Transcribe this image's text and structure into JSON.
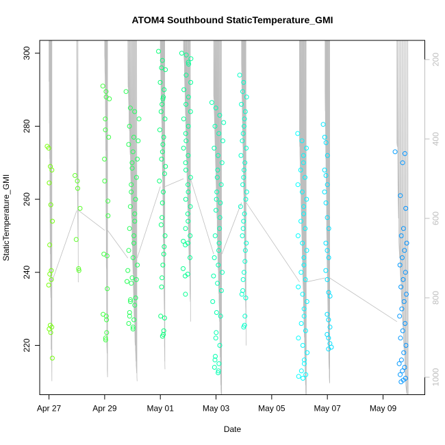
{
  "chart_data": {
    "type": "scatter",
    "title": "ATOM4 Southbound StaticTemperature_GMI",
    "xlabel": "Date",
    "ylabel": "StaticTemperature_GMI",
    "xlim": [
      "2017-04-26T16:00",
      "2017-05-10T12:00"
    ],
    "ylim": [
      206.5,
      303.5
    ],
    "x_ticks": [
      {
        "value": "2017-04-27",
        "label": "Apr 27"
      },
      {
        "value": "2017-04-29",
        "label": "Apr 29"
      },
      {
        "value": "2017-05-01",
        "label": "May 01"
      },
      {
        "value": "2017-05-03",
        "label": "May 03"
      },
      {
        "value": "2017-05-05",
        "label": "May 05"
      },
      {
        "value": "2017-05-07",
        "label": "May 07"
      },
      {
        "value": "2017-05-09",
        "label": "May 09"
      }
    ],
    "y_ticks": [
      220,
      240,
      260,
      280,
      300
    ],
    "y2_axis": {
      "quantity": "pressure",
      "reversed": true,
      "ticks": [
        200,
        400,
        600,
        800,
        1000
      ],
      "color": "#bebebe"
    },
    "grid": false,
    "legend": "none",
    "marker": "open-circle",
    "color_gradient": [
      "#7fff00",
      "#00ff7f",
      "#00ffff",
      "#007fff"
    ],
    "profile_line_color": "#bebebe",
    "flights": [
      {
        "start": "2017-04-27T00:00",
        "end": "2017-04-27T02:30",
        "y": [
          274.5,
          274,
          269,
          268,
          264.5,
          258.5,
          254,
          247.5,
          240.5,
          239.5,
          238,
          236.5,
          225.5,
          225,
          224.5,
          223.5,
          216.5
        ],
        "p": [
          255,
          255,
          360,
          360,
          450,
          540,
          600,
          690,
          760,
          780,
          800,
          820,
          930,
          930,
          940,
          950,
          1010
        ]
      },
      {
        "start": "2017-04-28T00:00",
        "end": "2017-04-28T01:30",
        "y": [
          266.5,
          265,
          263,
          257.5,
          249,
          241,
          240.5
        ],
        "p": [
          490,
          500,
          520,
          580,
          660,
          760,
          760
        ]
      },
      {
        "start": "2017-04-29T00:00",
        "end": "2017-04-29T02:30",
        "y": [
          291,
          289.5,
          288,
          287.5,
          282,
          279,
          277,
          271,
          265,
          259.5,
          255.5,
          245,
          244.5,
          235.5,
          228.5,
          228,
          227,
          223.5,
          222,
          221.5
        ],
        "p": [
          190,
          200,
          230,
          240,
          280,
          320,
          350,
          430,
          510,
          580,
          630,
          720,
          730,
          850,
          920,
          930,
          940,
          980,
          990,
          1000
        ]
      },
      {
        "start": "2017-04-29T20:00",
        "end": "2017-04-30T04:00",
        "y": [
          289.5,
          285,
          284,
          282,
          280,
          277,
          276,
          275,
          273,
          271,
          270,
          268.5,
          266,
          264,
          262,
          260,
          258,
          256,
          254,
          252,
          250,
          248,
          246,
          244,
          242,
          240.5,
          238.5,
          238,
          237.5,
          237,
          233,
          232.5,
          232,
          231,
          229,
          228,
          227,
          226,
          225,
          224.5
        ],
        "p": [
          190,
          270,
          280,
          300,
          320,
          360,
          370,
          380,
          400,
          430,
          440,
          450,
          490,
          510,
          540,
          570,
          600,
          620,
          650,
          670,
          700,
          720,
          740,
          770,
          790,
          820,
          840,
          850,
          860,
          870,
          910,
          920,
          930,
          940,
          960,
          970,
          980,
          990,
          1000,
          1010
        ]
      },
      {
        "start": "2017-05-01T00:00",
        "end": "2017-05-01T04:00",
        "y": [
          300.5,
          298,
          296,
          295.5,
          292,
          290,
          288,
          287.5,
          286,
          284,
          282,
          279,
          277,
          275,
          273,
          271,
          269,
          267,
          265,
          262,
          259,
          255,
          253,
          250,
          247,
          245,
          242,
          238.5,
          236,
          228,
          227.5,
          224,
          223,
          222.5
        ],
        "p": [
          170,
          200,
          220,
          230,
          260,
          280,
          300,
          310,
          320,
          340,
          360,
          400,
          420,
          440,
          460,
          480,
          500,
          520,
          540,
          570,
          600,
          640,
          660,
          690,
          720,
          740,
          770,
          800,
          830,
          920,
          930,
          960,
          970,
          980
        ]
      },
      {
        "start": "2017-05-01T20:00",
        "end": "2017-05-02T02:00",
        "y": [
          300,
          299.5,
          298.5,
          297.5,
          297,
          294,
          292,
          290,
          288,
          286,
          284,
          282,
          280,
          278,
          276,
          274,
          272,
          270,
          268,
          266,
          264,
          262,
          260,
          258,
          256,
          254,
          252,
          250,
          248.5,
          248,
          247.5,
          244,
          241,
          239.5,
          239,
          234
        ],
        "p": [
          180,
          185,
          190,
          200,
          210,
          240,
          260,
          280,
          300,
          320,
          340,
          360,
          380,
          400,
          420,
          440,
          460,
          480,
          500,
          520,
          540,
          560,
          580,
          600,
          620,
          640,
          660,
          680,
          700,
          710,
          720,
          750,
          780,
          800,
          810,
          860
        ]
      },
      {
        "start": "2017-05-02T22:00",
        "end": "2017-05-03T05:00",
        "y": [
          286.5,
          285,
          283,
          281,
          280,
          278,
          276,
          274,
          272,
          270,
          268,
          266,
          264,
          262,
          260,
          259,
          257,
          255,
          252,
          250,
          248,
          246,
          244,
          242,
          240,
          239,
          237,
          235,
          232,
          229,
          228,
          223.5,
          222,
          220,
          217,
          216,
          215,
          214,
          213,
          212.5
        ],
        "p": [
          290,
          300,
          320,
          340,
          360,
          380,
          400,
          420,
          440,
          460,
          480,
          500,
          520,
          540,
          560,
          580,
          600,
          620,
          650,
          670,
          690,
          710,
          730,
          750,
          770,
          790,
          810,
          830,
          860,
          890,
          900,
          950,
          970,
          990,
          1020,
          1030,
          1040,
          1050,
          1060,
          1070
        ]
      },
      {
        "start": "2017-05-03T22:00",
        "end": "2017-05-04T02:00",
        "y": [
          294,
          292,
          289.5,
          288,
          286,
          284,
          282,
          280,
          278,
          276,
          274,
          272,
          270,
          268,
          266,
          264,
          262,
          260,
          258,
          256,
          254,
          252,
          250,
          248,
          246,
          243,
          240,
          238,
          235,
          234,
          233,
          228,
          225.5,
          225
        ],
        "p": [
          210,
          230,
          260,
          280,
          300,
          320,
          340,
          360,
          380,
          400,
          420,
          440,
          460,
          480,
          500,
          520,
          540,
          560,
          580,
          600,
          620,
          640,
          660,
          680,
          700,
          730,
          760,
          780,
          810,
          820,
          830,
          880,
          910,
          920
        ]
      },
      {
        "start": "2017-05-06T00:00",
        "end": "2017-05-06T06:00",
        "y": [
          278,
          276,
          274,
          272,
          270,
          268,
          266,
          264,
          262,
          260,
          258,
          256,
          254,
          252,
          250,
          248,
          246,
          244,
          242,
          240,
          238,
          236,
          234,
          232,
          230,
          228,
          226,
          224,
          222,
          220,
          218,
          216,
          215,
          213,
          212,
          211.5,
          211
        ],
        "p": [
          400,
          420,
          440,
          460,
          480,
          500,
          520,
          540,
          560,
          580,
          600,
          620,
          640,
          660,
          680,
          700,
          720,
          740,
          760,
          780,
          800,
          820,
          840,
          860,
          880,
          900,
          920,
          940,
          960,
          980,
          1000,
          1020,
          1030,
          1050,
          1060,
          1070,
          1080
        ]
      },
      {
        "start": "2017-05-06T22:00",
        "end": "2017-05-07T02:00",
        "y": [
          280.5,
          277,
          275.5,
          272,
          268,
          266.5,
          264,
          262,
          259,
          255,
          252,
          248,
          246,
          244,
          240.5,
          238,
          234.5,
          233.5,
          228.5,
          227,
          225,
          223,
          222,
          220.5,
          219.5,
          219
        ],
        "p": [
          280,
          330,
          350,
          390,
          450,
          470,
          500,
          530,
          570,
          630,
          660,
          710,
          730,
          750,
          790,
          820,
          850,
          860,
          920,
          930,
          950,
          970,
          980,
          1000,
          1010,
          1015
        ]
      },
      {
        "start": "2017-05-09T12:00",
        "end": "2017-05-09T22:00",
        "y": [
          273,
          272.5,
          270,
          261,
          257.5,
          252,
          250,
          248,
          246,
          244,
          242,
          240,
          238,
          236,
          234,
          232,
          230,
          228,
          226,
          224,
          222,
          220,
          218,
          216,
          215,
          214,
          213,
          212,
          211,
          210.5,
          210
        ],
        "p": [
          410,
          420,
          450,
          550,
          600,
          660,
          680,
          700,
          720,
          740,
          760,
          780,
          800,
          820,
          840,
          860,
          880,
          900,
          920,
          940,
          960,
          980,
          1000,
          1020,
          1030,
          1040,
          1050,
          1060,
          1070,
          1075,
          1080
        ]
      }
    ]
  }
}
